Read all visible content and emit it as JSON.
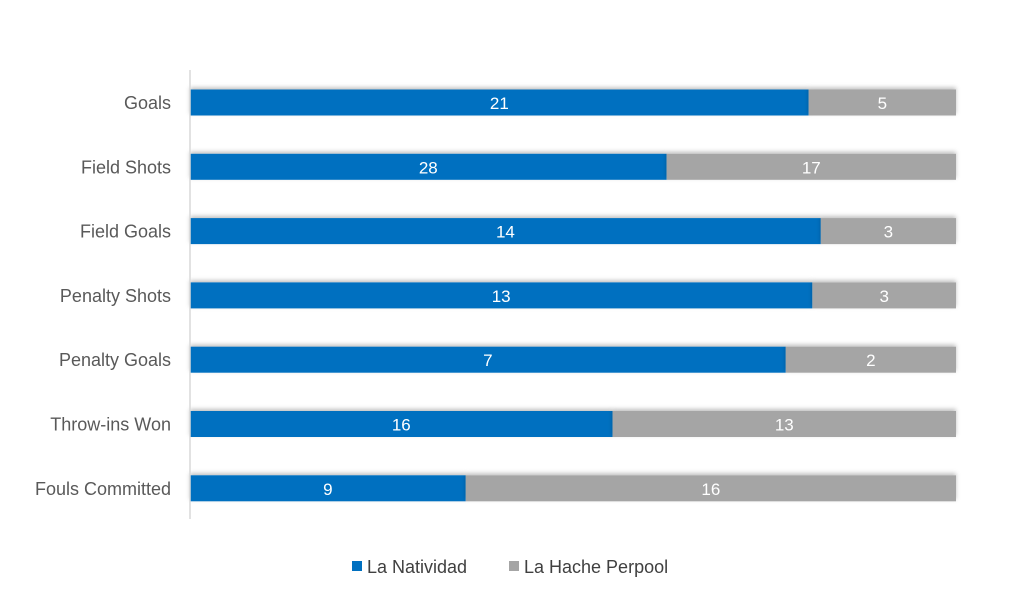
{
  "chart_data": {
    "type": "bar",
    "orientation": "horizontal",
    "stacking": "percent",
    "title": "",
    "xlabel": "",
    "ylabel": "",
    "categories": [
      "Goals",
      "Field Shots",
      "Field Goals",
      "Penalty Shots",
      "Penalty Goals",
      "Throw-ins Won",
      "Fouls Committed"
    ],
    "series": [
      {
        "name": "La Natividad",
        "color": "#0070C0",
        "values": [
          21,
          28,
          14,
          13,
          7,
          16,
          9
        ]
      },
      {
        "name": "La Hache Perpool",
        "color": "#A5A5A5",
        "values": [
          5,
          17,
          3,
          3,
          2,
          13,
          16
        ]
      }
    ],
    "xlim": [
      0,
      100
    ],
    "grid": false,
    "legend": "bottom"
  }
}
